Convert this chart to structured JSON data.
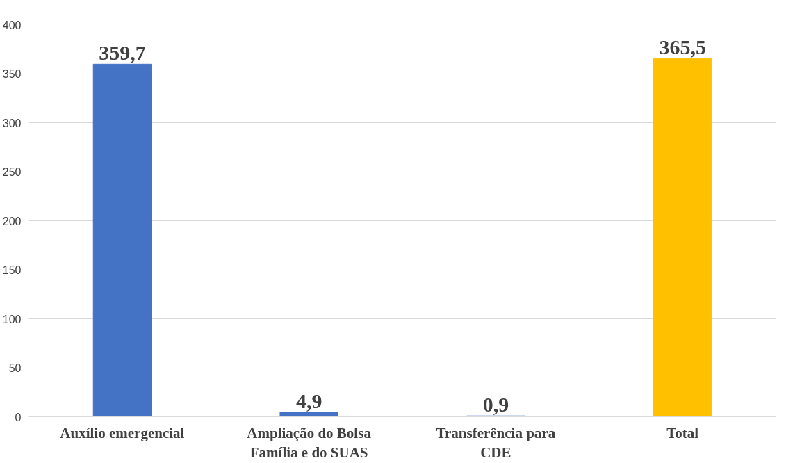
{
  "chart_data": {
    "type": "bar",
    "categories": [
      "Auxílio emergencial",
      "Ampliação do Bolsa Família e do SUAS",
      "Transferência para CDE",
      "Total"
    ],
    "values": [
      359.7,
      4.9,
      0.9,
      365.5
    ],
    "colors": [
      "#4472c4",
      "#4472c4",
      "#4472c4",
      "#ffc000"
    ],
    "value_labels": [
      "359,7",
      "4,9",
      "0,9",
      "365,5"
    ],
    "ylim": [
      0,
      400
    ],
    "yticks": [
      0,
      50,
      100,
      150,
      200,
      250,
      300,
      350,
      400
    ],
    "grid": "y"
  }
}
